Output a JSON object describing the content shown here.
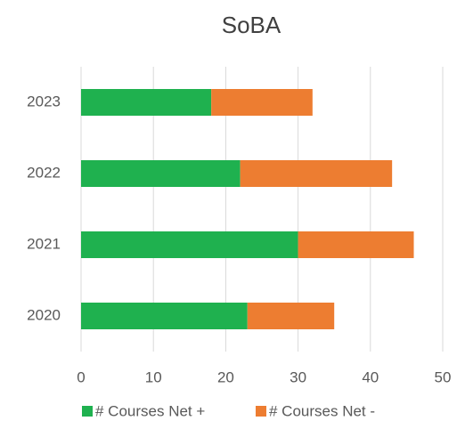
{
  "chart_data": {
    "type": "stacked_barh",
    "title": "SoBA",
    "categories": [
      "2020",
      "2021",
      "2022",
      "2023"
    ],
    "series": [
      {
        "name": "# Courses Net +",
        "color": "#1fb14f",
        "values": [
          23,
          30,
          22,
          18
        ]
      },
      {
        "name": "# Courses Net -",
        "color": "#ed7d31",
        "values": [
          12,
          16,
          21,
          14
        ]
      }
    ],
    "xlim": [
      0,
      50
    ],
    "xticks": [
      0,
      10,
      20,
      30,
      40,
      50
    ],
    "grid": true,
    "legend": "bottom"
  }
}
